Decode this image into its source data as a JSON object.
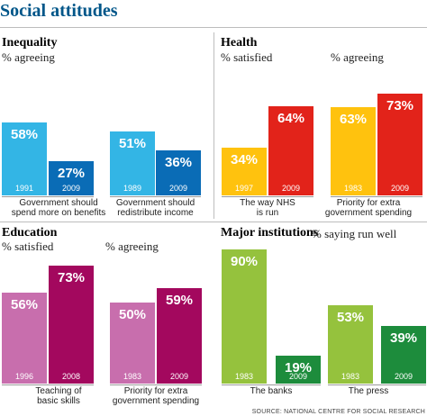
{
  "title": "Social attitudes",
  "source": "SOURCE: NATIONAL CENTRE FOR SOCIAL RESEARCH",
  "colors": {
    "title": "#005689",
    "light_blue": "#33b5e5",
    "dark_blue": "#0a6cb6",
    "red": "#e2231a",
    "yellow": "#ffc20e",
    "pink": "#c86ead",
    "maroon": "#a3085e",
    "light_green": "#95c23d",
    "dark_green": "#1d8c3c"
  },
  "chart_data": [
    {
      "type": "bar",
      "title": "Inequality",
      "sublabels": [
        "% agreeing"
      ],
      "ylim": [
        0,
        100
      ],
      "groups": [
        {
          "caption": "Government should\nspend more on benefits",
          "bars": [
            {
              "label": "1991",
              "value": 58,
              "display": "58%",
              "color": "#33b5e5"
            },
            {
              "label": "2009",
              "value": 27,
              "display": "27%",
              "color": "#0a6cb6"
            }
          ]
        },
        {
          "caption": "Government should\nredistribute income",
          "bars": [
            {
              "label": "1989",
              "value": 51,
              "display": "51%",
              "color": "#33b5e5"
            },
            {
              "label": "2009",
              "value": 36,
              "display": "36%",
              "color": "#0a6cb6"
            }
          ]
        }
      ]
    },
    {
      "type": "bar",
      "title": "Health",
      "sublabels": [
        "% satisfied",
        "% agreeing"
      ],
      "ylim": [
        0,
        100
      ],
      "groups": [
        {
          "caption": "The way NHS\nis run",
          "bars": [
            {
              "label": "1997",
              "value": 34,
              "display": "34%",
              "color": "#ffc20e"
            },
            {
              "label": "2009",
              "value": 64,
              "display": "64%",
              "color": "#e2231a"
            }
          ]
        },
        {
          "caption": "Priority for extra\ngovernment spending",
          "bars": [
            {
              "label": "1983",
              "value": 63,
              "display": "63%",
              "color": "#ffc20e"
            },
            {
              "label": "2009",
              "value": 73,
              "display": "73%",
              "color": "#e2231a"
            }
          ]
        }
      ]
    },
    {
      "type": "bar",
      "title": "Education",
      "sublabels": [
        "% satisfied",
        "% agreeing"
      ],
      "ylim": [
        0,
        100
      ],
      "groups": [
        {
          "caption": "Teaching of\nbasic skills",
          "bars": [
            {
              "label": "1996",
              "value": 56,
              "display": "56%",
              "color": "#c86ead"
            },
            {
              "label": "2008",
              "value": 73,
              "display": "73%",
              "color": "#a3085e"
            }
          ]
        },
        {
          "caption": "Priority for extra\ngovernment spending",
          "bars": [
            {
              "label": "1983",
              "value": 50,
              "display": "50%",
              "color": "#c86ead"
            },
            {
              "label": "2009",
              "value": 59,
              "display": "59%",
              "color": "#a3085e"
            }
          ]
        }
      ]
    },
    {
      "type": "bar",
      "title": "Major institutions",
      "sublabels": [
        "% saying run well"
      ],
      "ylim": [
        0,
        100
      ],
      "groups": [
        {
          "caption": "The banks",
          "bars": [
            {
              "label": "1983",
              "value": 90,
              "display": "90%",
              "color": "#95c23d"
            },
            {
              "label": "2009",
              "value": 19,
              "display": "19%",
              "color": "#1d8c3c"
            }
          ]
        },
        {
          "caption": "The press",
          "bars": [
            {
              "label": "1983",
              "value": 53,
              "display": "53%",
              "color": "#95c23d"
            },
            {
              "label": "2009",
              "value": 39,
              "display": "39%",
              "color": "#1d8c3c"
            }
          ]
        }
      ]
    }
  ]
}
